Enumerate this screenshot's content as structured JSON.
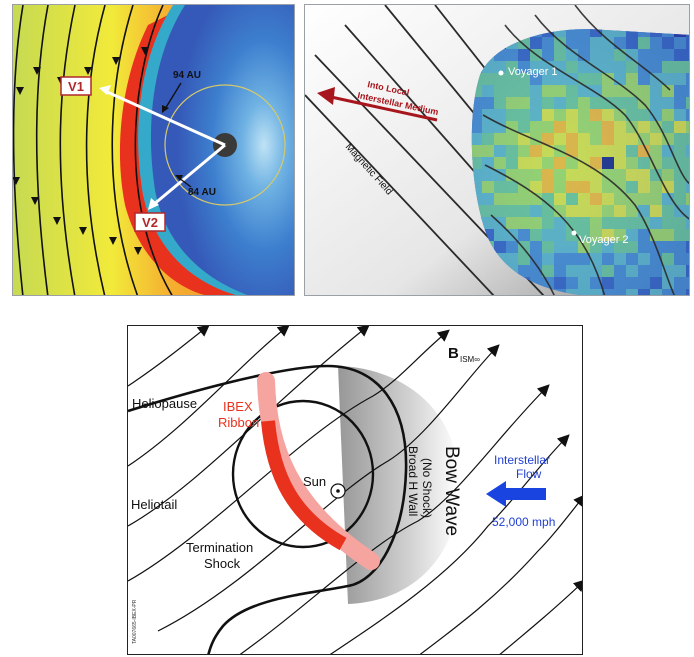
{
  "panel_a": {
    "labels": {
      "v1": "V1",
      "v2": "V2",
      "dist_94": "94 AU",
      "dist_84": "84 AU"
    }
  },
  "panel_b": {
    "labels": {
      "into_lism_line1": "Into Local",
      "into_lism_line2": "Interstellar Medium",
      "magnetic_field": "Magnetic Field",
      "voyager1": "Voyager 1",
      "voyager2": "Voyager 2"
    }
  },
  "panel_c": {
    "labels": {
      "b_field": "B",
      "b_field_sub": "ISM∞",
      "heliopause": "Heliopause",
      "ibex_ribbon_line1": "IBEX",
      "ibex_ribbon_line2": "Ribbon",
      "sun": "Sun",
      "heliotail": "Heliotail",
      "termination_shock_line1": "Termination",
      "termination_shock_line2": "Shock",
      "bow_wave": "Bow Wave",
      "no_shock": "(No Shock)",
      "broad_h_wall": "Broad H Wall",
      "interstellar_flow_line1": "Interstellar",
      "interstellar_flow_line2": "Flow",
      "speed": "52,000 mph",
      "figure_code": "TA007665-IBEX-PR"
    },
    "colors": {
      "ribbon": "#e8321e",
      "flow_text": "#1f3fd6",
      "flow_arrow": "#1a44e0"
    }
  }
}
